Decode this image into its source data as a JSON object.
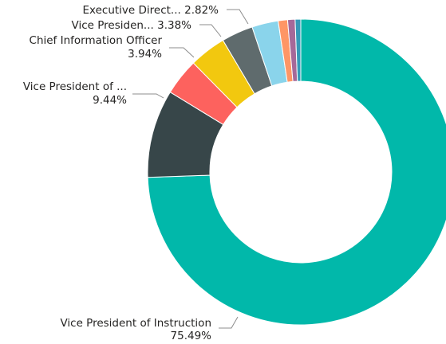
{
  "chart_data": {
    "type": "donut",
    "slices": [
      {
        "label": "Vice President of Instruction",
        "display_label": "Vice President of Instruction",
        "value": 75.49,
        "value_label": "75.49%",
        "color": "#01B8AA"
      },
      {
        "label": "Vice President of ...",
        "display_label": "Vice President of ...",
        "value": 9.44,
        "value_label": "9.44%",
        "color": "#374649"
      },
      {
        "label": "",
        "display_label": "",
        "value": 3.94,
        "value_label": "",
        "color": "#FD625E"
      },
      {
        "label": "Chief Information Officer",
        "display_label": "Chief Information Officer",
        "value": 3.94,
        "value_label": "3.94%",
        "color": "#F2C80F"
      },
      {
        "label": "Vice Presiden...",
        "display_label": "Vice Presiden...",
        "value": 3.38,
        "value_label": "3.38%",
        "color": "#5F6B6D"
      },
      {
        "label": "Executive Direct...",
        "display_label": "Executive Direct...",
        "value": 2.82,
        "value_label": "2.82%",
        "color": "#8AD4EB"
      },
      {
        "label": "",
        "display_label": "",
        "value": 1.0,
        "value_label": "",
        "color": "#FE9666"
      },
      {
        "label": "",
        "display_label": "",
        "value": 0.8,
        "value_label": "",
        "color": "#A66999"
      },
      {
        "label": "",
        "display_label": "",
        "value": 0.6,
        "value_label": "",
        "color": "#3599B8"
      }
    ],
    "legend": "none"
  }
}
